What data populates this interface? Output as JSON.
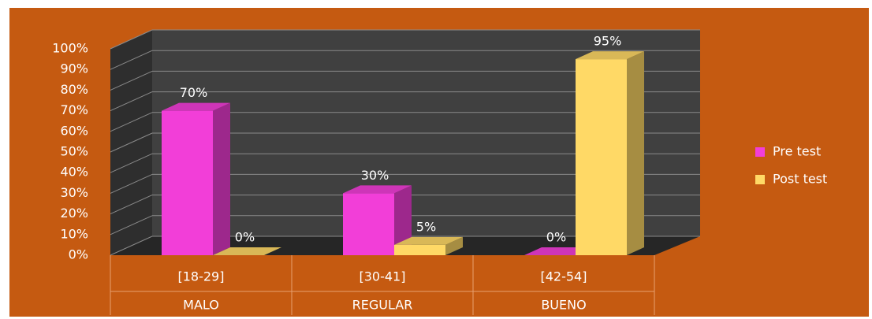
{
  "chart_data": {
    "type": "bar",
    "categories": [
      "[18-29]",
      "[30-41]",
      "[42-54]"
    ],
    "category_groups": [
      "MALO",
      "REGULAR",
      "BUENO"
    ],
    "series": [
      {
        "name": "Pre test",
        "color": "#f23ed8",
        "values": [
          70,
          30,
          0
        ],
        "value_labels": [
          "70%",
          "30%",
          "0%"
        ]
      },
      {
        "name": "Post test",
        "color": "#ffd966",
        "values": [
          0,
          5,
          95
        ],
        "value_labels": [
          "0%",
          "5%",
          "95%"
        ]
      }
    ],
    "ylim": [
      0,
      100
    ],
    "yticks": [
      {
        "value": 0,
        "label": "0%"
      },
      {
        "value": 10,
        "label": "10%"
      },
      {
        "value": 20,
        "label": "20%"
      },
      {
        "value": 30,
        "label": "30%"
      },
      {
        "value": 40,
        "label": "40%"
      },
      {
        "value": 50,
        "label": "50%"
      },
      {
        "value": 60,
        "label": "60%"
      },
      {
        "value": 70,
        "label": "70%"
      },
      {
        "value": 80,
        "label": "80%"
      },
      {
        "value": 90,
        "label": "90%"
      },
      {
        "value": 100,
        "label": "100%"
      }
    ],
    "grid": true,
    "legend": "right"
  }
}
